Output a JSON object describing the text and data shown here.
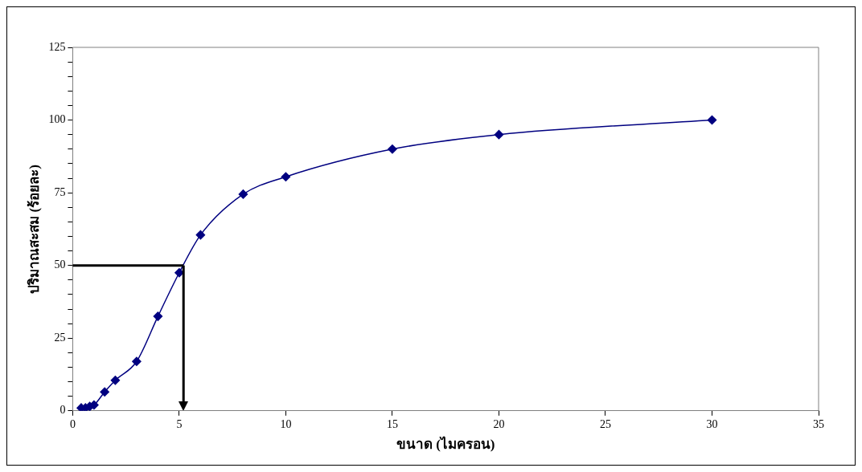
{
  "chart_data": {
    "type": "line",
    "xlabel": "ขนาด (ไมครอน)",
    "ylabel": "ปริมาณสะสม (ร้อยละ)",
    "x": [
      0.4,
      0.6,
      0.8,
      1,
      1.5,
      2,
      3,
      4,
      5,
      6,
      8,
      10,
      15,
      20,
      30
    ],
    "series": [
      {
        "color": "#000080",
        "values": [
          1,
          1,
          1.5,
          2,
          6.5,
          10.5,
          17,
          32.5,
          47.5,
          60.5,
          74.5,
          80.5,
          90,
          95,
          100
        ]
      }
    ],
    "xlim": [
      0,
      35
    ],
    "xticks": [
      0,
      5,
      10,
      15,
      20,
      25,
      30,
      35
    ],
    "ylim": [
      0,
      125
    ],
    "yticks": [
      0,
      {
        "value": 5,
        "label": null
      },
      {
        "value": 10,
        "label": null
      },
      {
        "value": 15,
        "label": null
      },
      {
        "value": 20,
        "label": null
      },
      25,
      {
        "value": 30,
        "label": null
      },
      {
        "value": 35,
        "label": null
      },
      {
        "value": 40,
        "label": null
      },
      {
        "value": 45,
        "label": null
      },
      50,
      {
        "value": 55,
        "label": null
      },
      {
        "value": 60,
        "label": null
      },
      {
        "value": 65,
        "label": null
      },
      {
        "value": 70,
        "label": null
      },
      75,
      {
        "value": 80,
        "label": null
      },
      {
        "value": 85,
        "label": null
      },
      {
        "value": 90,
        "label": null
      },
      {
        "value": 95,
        "label": null
      },
      100,
      {
        "value": 105,
        "label": null
      },
      {
        "value": 110,
        "label": null
      },
      {
        "value": 115,
        "label": null
      },
      {
        "value": 120,
        "label": null
      },
      125
    ],
    "ref_lines": [
      {
        "axis": "y",
        "value": 50,
        "color": "#000000",
        "line_style": "solid"
      },
      {
        "axis": "x",
        "value": 5.2,
        "color": "#000000",
        "line_style": "solid"
      }
    ],
    "marker": "diamond",
    "line_style": "solid",
    "grid": false,
    "legend": false
  }
}
